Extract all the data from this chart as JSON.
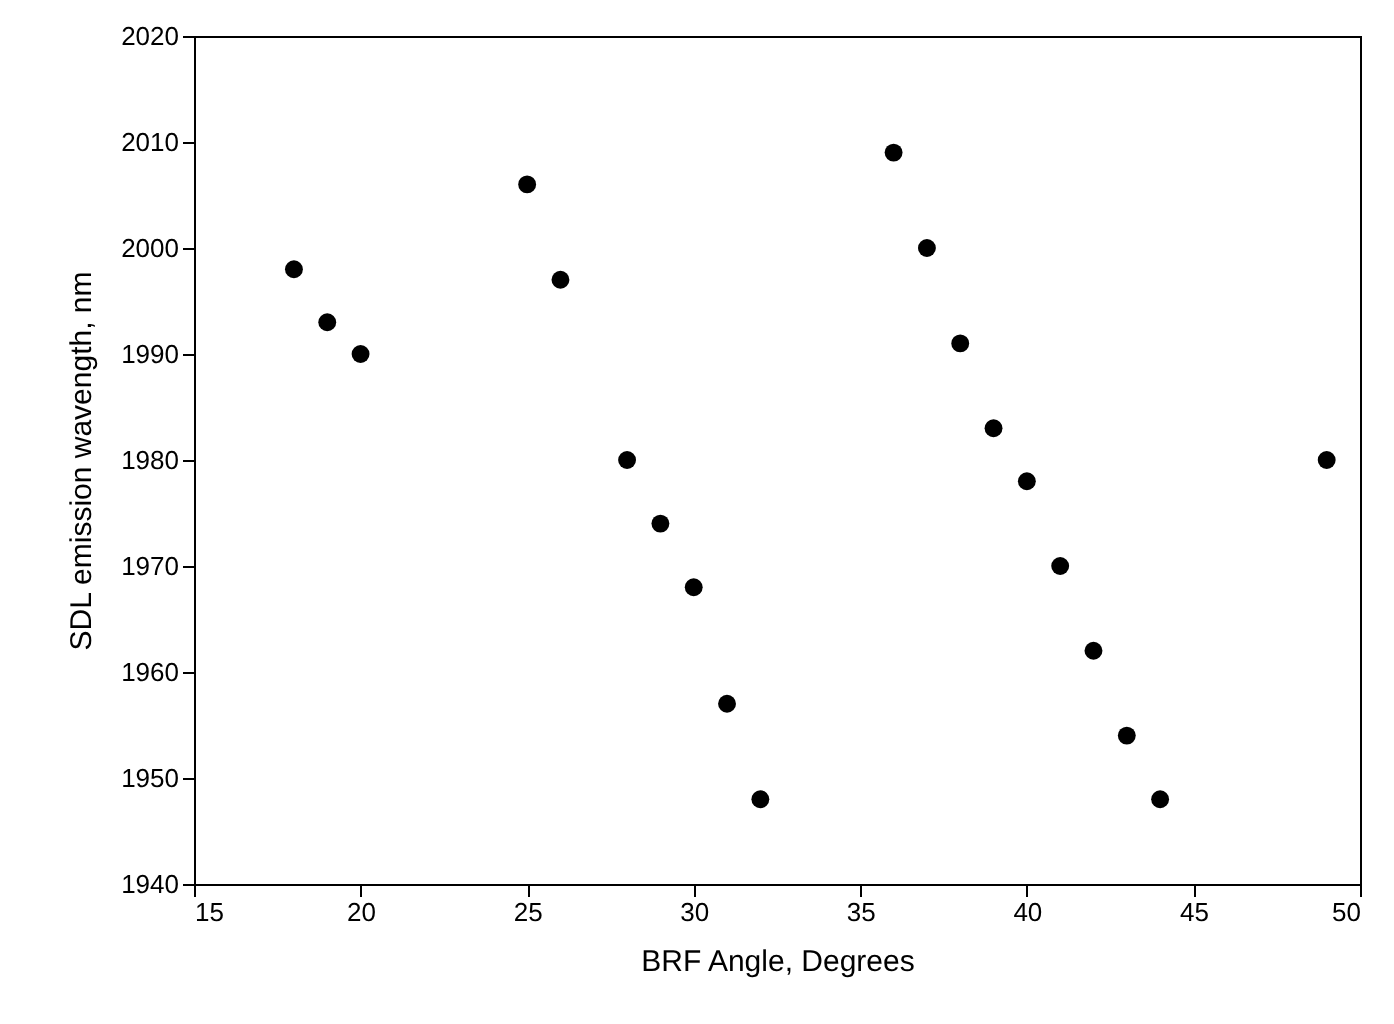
{
  "chart_data": {
    "type": "scatter",
    "xlabel": "BRF Angle, Degrees",
    "ylabel": "SDL emission wavength, nm",
    "x": [
      18,
      19,
      20,
      25,
      26,
      28,
      29,
      30,
      31,
      32,
      36,
      37,
      38,
      39,
      40,
      41,
      42,
      43,
      44,
      49
    ],
    "series": [
      {
        "color": "#000000",
        "values": [
          1998,
          1993,
          1990,
          2006,
          1997,
          1980,
          1974,
          1968,
          1957,
          1948,
          2009,
          2000,
          1991,
          1983,
          1978,
          1970,
          1962,
          1954,
          1948,
          1980
        ]
      }
    ],
    "xlim": [
      15,
      50
    ],
    "xticks": [
      15,
      20,
      25,
      30,
      35,
      40,
      45,
      50
    ],
    "ylim": [
      1940,
      2020
    ],
    "yticks": [
      1940,
      1950,
      1960,
      1970,
      1980,
      1990,
      2000,
      2010,
      2020
    ],
    "marker": "circle",
    "grid": false
  }
}
